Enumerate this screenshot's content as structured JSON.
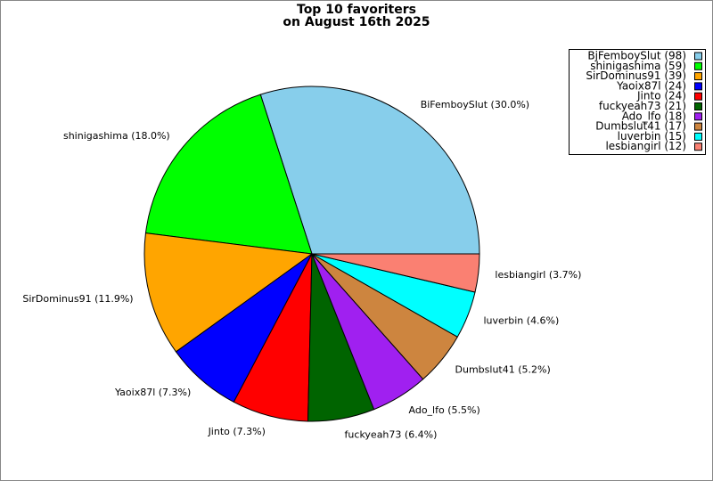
{
  "chart_data": {
    "type": "pie",
    "title": [
      "Top 10 favoriters",
      "on August 16th 2025"
    ],
    "values": [
      98,
      59,
      39,
      24,
      24,
      21,
      18,
      17,
      15,
      12
    ],
    "slice_labels": [
      "BiFemboySlut (30.0%)",
      "shinigashima (18.0%)",
      "SirDominus91 (11.9%)",
      "Yaoix87l (7.3%)",
      "Jinto (7.3%)",
      "fuckyeah73 (6.4%)",
      "Ado_lfo (5.5%)",
      "Dumbslut41 (5.2%)",
      "luverbin (4.6%)",
      "lesbiangirl (3.7%)"
    ],
    "legend_labels": [
      "BjFemboySlut (98)",
      "shinigashima (59)",
      "SirDominus91 (39)",
      "Yaoix87l (24)",
      "Jinto (24)",
      "fuckyeah73 (21)",
      "Ado_lfo (18)",
      "Dumbslut41 (17)",
      "luverbin (15)",
      "lesbiangirl (12)"
    ],
    "colors": [
      "#87ceeb",
      "#00ff00",
      "#ffa500",
      "#0000ff",
      "#ff0000",
      "#006400",
      "#a020f0",
      "#cd853f",
      "#00ffff",
      "#fa8072"
    ],
    "legend": "upper right"
  }
}
